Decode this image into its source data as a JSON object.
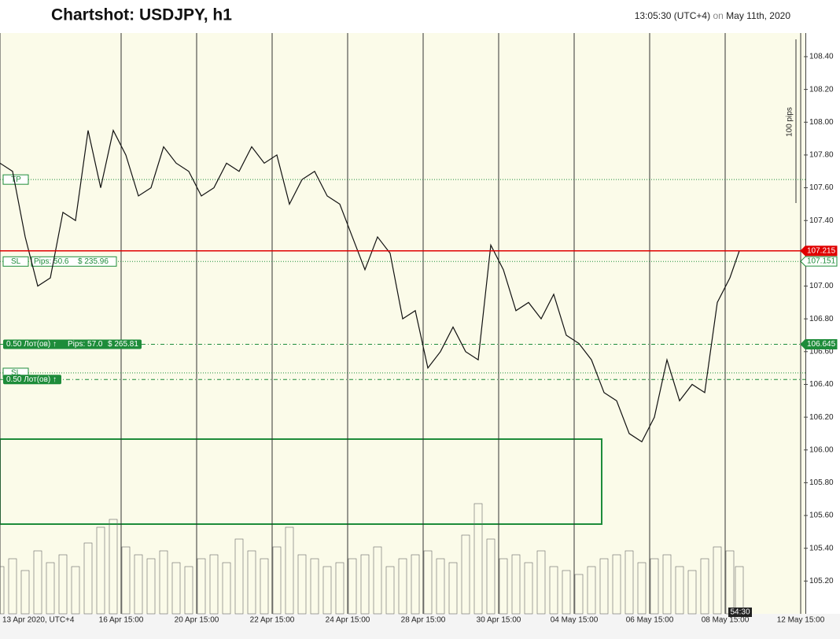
{
  "chart_data": {
    "type": "line",
    "title": "Chartshot: USDJPY, h1",
    "time": "13:05:30 (UTC+4)",
    "on": "on",
    "date": "May 11th, 2020",
    "pips_label": "100 pips",
    "timer": "54:30",
    "color": "#111111",
    "x": [
      0,
      8,
      16,
      24,
      32,
      40,
      48,
      56,
      64,
      72,
      80,
      88,
      96,
      104,
      112,
      120,
      128,
      136,
      144,
      152,
      160,
      168,
      176,
      184,
      192,
      200,
      208,
      216,
      224,
      232,
      240,
      248,
      256,
      264,
      272,
      280,
      288,
      296,
      304,
      312,
      320,
      328,
      336,
      344,
      352,
      360,
      368,
      376,
      384,
      392,
      400,
      408,
      416,
      424,
      432,
      440,
      448,
      456,
      464,
      470
    ],
    "values": [
      107.75,
      107.7,
      107.3,
      107.0,
      107.05,
      107.45,
      107.4,
      107.95,
      107.6,
      107.95,
      107.8,
      107.55,
      107.6,
      107.85,
      107.75,
      107.7,
      107.55,
      107.6,
      107.75,
      107.7,
      107.85,
      107.75,
      107.8,
      107.5,
      107.65,
      107.7,
      107.55,
      107.5,
      107.3,
      107.1,
      107.3,
      107.2,
      106.8,
      106.85,
      106.5,
      106.6,
      106.75,
      106.6,
      106.55,
      107.25,
      107.1,
      106.85,
      106.9,
      106.8,
      106.95,
      106.7,
      106.65,
      106.55,
      106.35,
      106.3,
      106.1,
      106.05,
      106.2,
      106.55,
      106.3,
      106.4,
      106.35,
      106.9,
      107.05,
      107.215
    ],
    "volume": [
      60,
      70,
      55,
      80,
      65,
      75,
      60,
      90,
      110,
      120,
      85,
      75,
      70,
      80,
      65,
      60,
      70,
      75,
      65,
      95,
      80,
      70,
      85,
      110,
      75,
      70,
      60,
      65,
      70,
      75,
      85,
      60,
      70,
      75,
      80,
      70,
      65,
      100,
      140,
      95,
      70,
      75,
      65,
      80,
      60,
      55,
      50,
      60,
      70,
      75,
      80,
      65,
      70,
      75,
      60,
      55,
      70,
      85,
      80,
      60
    ],
    "xlim": [
      0,
      534
    ],
    "ylim": [
      105.0,
      108.544
    ],
    "xticks": [
      {
        "value": 0,
        "label": "13 Apr 2020, UTC+4"
      },
      {
        "value": 77,
        "label": "16 Apr 15:00"
      },
      {
        "value": 125,
        "label": "20 Apr 15:00"
      },
      {
        "value": 173,
        "label": "22 Apr 15:00"
      },
      {
        "value": 221,
        "label": "24 Apr 15:00"
      },
      {
        "value": 269,
        "label": "28 Apr 15:00"
      },
      {
        "value": 317,
        "label": "30 Apr 15:00"
      },
      {
        "value": 365,
        "label": "04 May 15:00"
      },
      {
        "value": 413,
        "label": "06 May 15:00"
      },
      {
        "value": 461,
        "label": "08 May 15:00"
      },
      {
        "value": 509,
        "label": "12 May 15:00"
      }
    ],
    "yticks": [
      {
        "value": 105.2,
        "label": "105.20"
      },
      {
        "value": 105.4,
        "label": "105.40"
      },
      {
        "value": 105.6,
        "label": "105.60"
      },
      {
        "value": 105.8,
        "label": "105.80"
      },
      {
        "value": 106.0,
        "label": "106.00"
      },
      {
        "value": 106.2,
        "label": "106.20"
      },
      {
        "value": 106.4,
        "label": "106.40"
      },
      {
        "value": 106.6,
        "label": "106.60"
      },
      {
        "value": 106.8,
        "label": "106.80"
      },
      {
        "value": 107.0,
        "label": "107.00"
      },
      {
        "value": 107.2,
        "label": "107.20"
      },
      {
        "value": 107.4,
        "label": "107.40"
      },
      {
        "value": 107.6,
        "label": "107.60"
      },
      {
        "value": 107.8,
        "label": "107.80"
      },
      {
        "value": 108.0,
        "label": "108.00"
      },
      {
        "value": 108.2,
        "label": "108.20"
      },
      {
        "value": 108.4,
        "label": "108.40"
      }
    ],
    "levels": [
      {
        "label": "TP",
        "value": 107.65
      },
      {
        "label": "SL",
        "value": 107.15,
        "pips": "Pips: 50.6",
        "usd": "$ 235.96"
      },
      {
        "label": "SL",
        "value": 106.47
      }
    ],
    "orders": [
      {
        "lot": "0.50 Лот(ов) ↑",
        "pips": "Pips: 57.0",
        "usd": "$ 265.81",
        "value": 106.645
      },
      {
        "lot": "0.50 Лот(ов) ↑",
        "value": 106.43
      }
    ],
    "price_tags": [
      {
        "value": 107.215,
        "label": "107.215",
        "color": "#e00000"
      },
      {
        "value": 107.151,
        "label": "107.151",
        "color": "#ffffff"
      },
      {
        "value": 106.645,
        "label": "106.645",
        "color": "#1e8c3a"
      }
    ]
  }
}
